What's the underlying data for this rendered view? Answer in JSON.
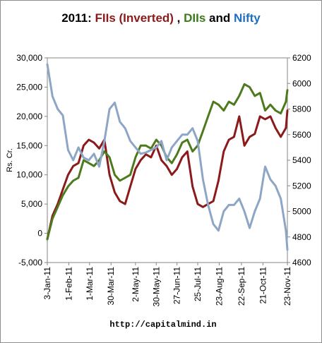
{
  "chart_data": {
    "type": "line",
    "title_parts": [
      {
        "text": "2011: ",
        "color": "#000000"
      },
      {
        "text": "FIIs (Inverted)",
        "color": "#8B1A1A"
      },
      {
        "text": " , ",
        "color": "#000000"
      },
      {
        "text": "DIIs",
        "color": "#3C7A1E"
      },
      {
        "text": " and ",
        "color": "#000000"
      },
      {
        "text": "Nifty",
        "color": "#1F6FBF"
      }
    ],
    "ylabel_left": "Rs. Cr.",
    "credit": "http://capitalmind.in",
    "x_tick_labels": [
      "3-Jan-11",
      "1-Feb-11",
      "1-Mar-11",
      "30-Mar-11",
      "2-May-11",
      "30-May-11",
      "27-Jun-11",
      "25-Jul-11",
      "23-Aug-11",
      "22-Sep-11",
      "21-Oct-11",
      "23-Nov-11"
    ],
    "x_range": [
      "3-Jan-11",
      "23-Nov-11"
    ],
    "y_left": {
      "min": -5000,
      "max": 30000,
      "step": 5000,
      "tick_labels": [
        "-5,000",
        "0",
        "5,000",
        "10,000",
        "15,000",
        "20,000",
        "25,000",
        "30,000"
      ]
    },
    "y_right": {
      "min": 4600,
      "max": 6200,
      "step": 200,
      "tick_labels": [
        "4600",
        "4800",
        "5000",
        "5200",
        "5400",
        "5600",
        "5800",
        "6000",
        "6200"
      ]
    },
    "series": [
      {
        "name": "FIIs (Inverted)",
        "axis": "left",
        "color": "#8B1A1A",
        "x": [
          "3-Jan-11",
          "10-Jan-11",
          "17-Jan-11",
          "24-Jan-11",
          "31-Jan-11",
          "7-Feb-11",
          "14-Feb-11",
          "21-Feb-11",
          "28-Feb-11",
          "7-Mar-11",
          "14-Mar-11",
          "21-Mar-11",
          "28-Mar-11",
          "4-Apr-11",
          "11-Apr-11",
          "18-Apr-11",
          "25-Apr-11",
          "2-May-11",
          "9-May-11",
          "16-May-11",
          "23-May-11",
          "30-May-11",
          "6-Jun-11",
          "13-Jun-11",
          "20-Jun-11",
          "27-Jun-11",
          "4-Jul-11",
          "11-Jul-11",
          "18-Jul-11",
          "25-Jul-11",
          "1-Aug-11",
          "8-Aug-11",
          "15-Aug-11",
          "22-Aug-11",
          "29-Aug-11",
          "5-Sep-11",
          "12-Sep-11",
          "19-Sep-11",
          "26-Sep-11",
          "3-Oct-11",
          "10-Oct-11",
          "17-Oct-11",
          "24-Oct-11",
          "31-Oct-11",
          "7-Nov-11",
          "14-Nov-11",
          "21-Nov-11",
          "23-Nov-11"
        ],
        "values": [
          -1000,
          3000,
          5000,
          7500,
          10000,
          11500,
          12000,
          15000,
          16000,
          15500,
          14500,
          16000,
          10000,
          7000,
          5500,
          5000,
          8000,
          11000,
          12500,
          13500,
          13000,
          15000,
          12500,
          11500,
          10000,
          11000,
          13000,
          14000,
          8000,
          5000,
          4500,
          5000,
          5500,
          9000,
          14000,
          16000,
          16500,
          20000,
          15000,
          16500,
          17000,
          20000,
          19500,
          20000,
          18000,
          16500,
          18000,
          21000
        ]
      },
      {
        "name": "DIIs",
        "axis": "left",
        "color": "#4E7A1E",
        "x": [
          "3-Jan-11",
          "10-Jan-11",
          "17-Jan-11",
          "24-Jan-11",
          "31-Jan-11",
          "7-Feb-11",
          "14-Feb-11",
          "21-Feb-11",
          "28-Feb-11",
          "7-Mar-11",
          "14-Mar-11",
          "21-Mar-11",
          "28-Mar-11",
          "4-Apr-11",
          "11-Apr-11",
          "18-Apr-11",
          "25-Apr-11",
          "2-May-11",
          "9-May-11",
          "16-May-11",
          "23-May-11",
          "30-May-11",
          "6-Jun-11",
          "13-Jun-11",
          "20-Jun-11",
          "27-Jun-11",
          "4-Jul-11",
          "11-Jul-11",
          "18-Jul-11",
          "25-Jul-11",
          "1-Aug-11",
          "8-Aug-11",
          "15-Aug-11",
          "22-Aug-11",
          "29-Aug-11",
          "5-Sep-11",
          "12-Sep-11",
          "19-Sep-11",
          "26-Sep-11",
          "3-Oct-11",
          "10-Oct-11",
          "17-Oct-11",
          "24-Oct-11",
          "31-Oct-11",
          "7-Nov-11",
          "14-Nov-11",
          "21-Nov-11",
          "23-Nov-11"
        ],
        "values": [
          -1000,
          2500,
          4500,
          6500,
          8000,
          9000,
          9500,
          12500,
          12000,
          11500,
          12500,
          14000,
          13000,
          10000,
          9000,
          9500,
          10000,
          13000,
          15000,
          15000,
          14500,
          16000,
          15000,
          13000,
          12000,
          13500,
          15500,
          16000,
          14000,
          15000,
          17500,
          20000,
          22500,
          22000,
          21000,
          22500,
          22000,
          23500,
          25500,
          25000,
          23500,
          24000,
          21000,
          22000,
          21000,
          20500,
          22500,
          24500
        ]
      },
      {
        "name": "Nifty",
        "axis": "right",
        "color": "#8DA6C6",
        "x": [
          "3-Jan-11",
          "10-Jan-11",
          "17-Jan-11",
          "24-Jan-11",
          "31-Jan-11",
          "7-Feb-11",
          "14-Feb-11",
          "21-Feb-11",
          "28-Feb-11",
          "7-Mar-11",
          "14-Mar-11",
          "21-Mar-11",
          "28-Mar-11",
          "4-Apr-11",
          "11-Apr-11",
          "18-Apr-11",
          "25-Apr-11",
          "2-May-11",
          "9-May-11",
          "16-May-11",
          "23-May-11",
          "30-May-11",
          "6-Jun-11",
          "13-Jun-11",
          "20-Jun-11",
          "27-Jun-11",
          "4-Jul-11",
          "11-Jul-11",
          "18-Jul-11",
          "25-Jul-11",
          "1-Aug-11",
          "8-Aug-11",
          "15-Aug-11",
          "22-Aug-11",
          "29-Aug-11",
          "5-Sep-11",
          "12-Sep-11",
          "19-Sep-11",
          "26-Sep-11",
          "3-Oct-11",
          "10-Oct-11",
          "17-Oct-11",
          "24-Oct-11",
          "31-Oct-11",
          "7-Nov-11",
          "14-Nov-11",
          "21-Nov-11",
          "23-Nov-11"
        ],
        "values": [
          6150,
          5900,
          5800,
          5750,
          5480,
          5400,
          5500,
          5420,
          5400,
          5450,
          5350,
          5550,
          5800,
          5850,
          5700,
          5650,
          5550,
          5500,
          5450,
          5460,
          5480,
          5500,
          5550,
          5400,
          5500,
          5550,
          5600,
          5600,
          5650,
          5550,
          5250,
          5050,
          4900,
          4850,
          5000,
          5050,
          5050,
          5100,
          5000,
          4870,
          5000,
          5100,
          5350,
          5250,
          5200,
          5100,
          4850,
          4700
        ]
      }
    ],
    "grid": false,
    "legend": "none"
  }
}
